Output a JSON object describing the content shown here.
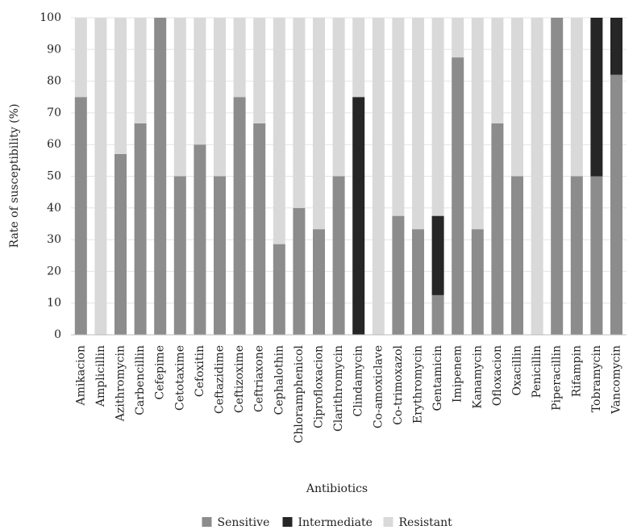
{
  "chart_data": {
    "type": "stacked_bar",
    "x_label": "Antibiotics",
    "y_label": "Rate of susceptibility (%)",
    "categories": [
      "Amikacion",
      "Amplicillin",
      "Azithromycin",
      "Carbencillin",
      "Cefepime",
      "Cetotaxime",
      "Cefoxitin",
      "Ceftazidime",
      "Ceftizoxime",
      "Ceftriaxone",
      "Cephalothin",
      "Chloramphenicol",
      "Ciprofloxacion",
      "Clarithromycin",
      "Clindamycin",
      "Co-amoxiclave",
      "Co-trimoxazol",
      "Erythromycin",
      "Gentamicin",
      "Imipenem",
      "Kanamycin",
      "Ofloxacion",
      "Oxacillin",
      "Penicillin",
      "Piperacillin",
      "Rifampin",
      "Tobramycin",
      "Vancomycin"
    ],
    "series": [
      {
        "name": "Sensitive",
        "color": "#8c8c8c",
        "values": [
          75,
          0,
          57,
          66.7,
          100,
          50,
          60,
          50,
          75,
          66.7,
          28.6,
          40,
          33.3,
          50,
          0,
          0,
          37.5,
          33.3,
          12.5,
          87.5,
          33.3,
          66.7,
          50,
          0,
          100,
          50,
          50,
          82
        ]
      },
      {
        "name": "Intermediate",
        "color": "#262626",
        "values": [
          0,
          0,
          0,
          0,
          0,
          0,
          0,
          0,
          0,
          0,
          0,
          0,
          0,
          0,
          75,
          0,
          0,
          0,
          25,
          0,
          0,
          0,
          0,
          0,
          0,
          0,
          50,
          18
        ]
      },
      {
        "name": "Resistant",
        "color": "#d9d9d9",
        "values": [
          25,
          100,
          43,
          33.3,
          0,
          50,
          40,
          50,
          25,
          33.3,
          71.4,
          60,
          66.7,
          50,
          25,
          100,
          62.5,
          66.7,
          62.5,
          12.5,
          66.7,
          33.3,
          50,
          100,
          0,
          50,
          0,
          0
        ]
      }
    ],
    "ylim": [
      0,
      100
    ],
    "yticks": [
      0,
      10,
      20,
      30,
      40,
      50,
      60,
      70,
      80,
      90,
      100
    ],
    "grid": true,
    "legend": "bottom"
  }
}
